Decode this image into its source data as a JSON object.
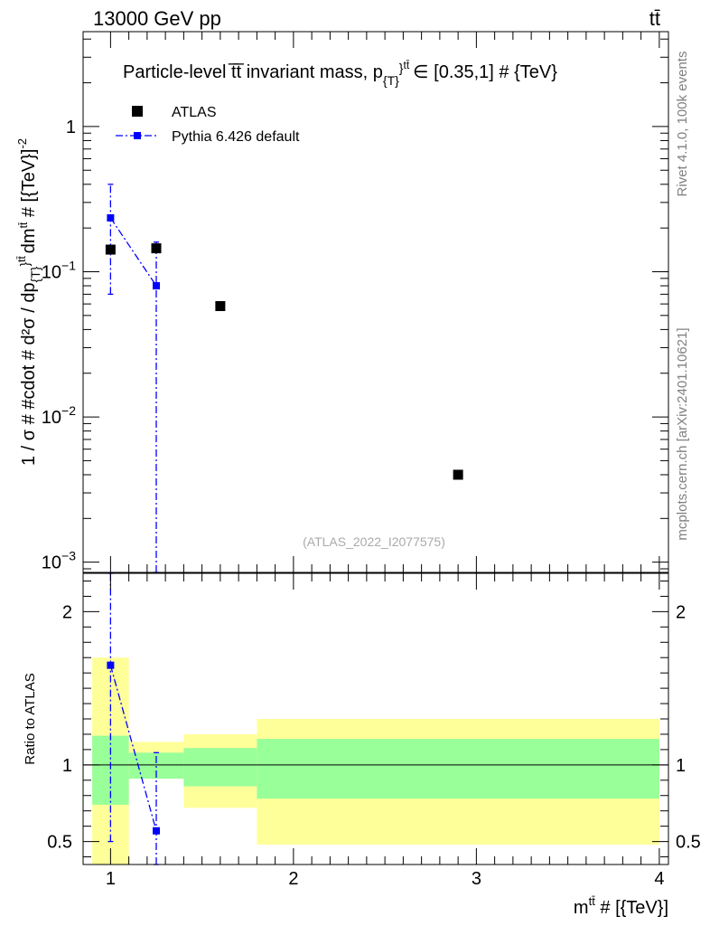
{
  "header": {
    "left": "13000 GeV pp",
    "right": "tt̄"
  },
  "side_labels": {
    "rivet": "Rivet 4.1.0,  100k events",
    "mcplots": "mcplots.cern.ch [arXiv:2401.10621]"
  },
  "chart_data": [
    {
      "type": "scatter",
      "panel": "main",
      "title": "Particle-level tt̄ invariant mass, p_{T}^{tt̄} ∈ [0.35,1] # {TeV}",
      "title_display": "Particle-level t̅t̅ invariant mass, p",
      "title_sub": "{T}",
      "title_sup": "}",
      "title_sup2": "tt̄",
      "title_tail": "∈ [0.35,1] # {TeV}",
      "ylabel": "1 / σ # #cdot # d²σ / dp_{T}^{tt̄} dm^{tt̄} # [{TeV}⁻²]",
      "ylabel_display": "1 / σ # #cdot # d²σ / dp",
      "ylabel_tail": "dm",
      "ylabel_units": " # [{TeV}]",
      "ylabel_exp": "-2",
      "yscale": "log",
      "ylim": [
        0.00085,
        4.5
      ],
      "xlim": [
        0.85,
        4.05
      ],
      "yticks": [
        {
          "value": 1,
          "label": "1"
        },
        {
          "value": 0.1,
          "label": "10",
          "exp": "−1"
        },
        {
          "value": 0.01,
          "label": "10",
          "exp": "−2"
        },
        {
          "value": 0.001,
          "label": "10",
          "exp": "−3"
        }
      ],
      "watermark": "(ATLAS_2022_I2077575)",
      "legend": {
        "placement": "top-left",
        "entries": [
          {
            "label": "ATLAS",
            "color": "#000000",
            "marker": "square"
          },
          {
            "label": "Pythia 6.426 default",
            "color": "#0000ff",
            "marker": "square",
            "line": "dash-dot"
          }
        ]
      },
      "series": [
        {
          "name": "ATLAS",
          "color": "#000000",
          "points": [
            {
              "x": 1.0,
              "y": 0.142
            },
            {
              "x": 1.25,
              "y": 0.145
            },
            {
              "x": 1.6,
              "y": 0.058
            },
            {
              "x": 2.9,
              "y": 0.004
            }
          ]
        },
        {
          "name": "Pythia 6.426 default",
          "color": "#0000ff",
          "points": [
            {
              "x": 1.0,
              "y": 0.235,
              "ylow": 0.07,
              "yhigh": 0.4
            },
            {
              "x": 1.25,
              "y": 0.08,
              "ylow": 0.00085,
              "yhigh": 0.16
            }
          ]
        }
      ]
    },
    {
      "type": "scatter",
      "panel": "ratio",
      "ylabel": "Ratio to ATLAS",
      "xlabel": "m^{tt̄} # [{TeV}]",
      "xlabel_display": "m",
      "xlabel_sup": "tt̄",
      "xlabel_tail": " # [{TeV}]",
      "ylim": [
        0.35,
        2.25
      ],
      "xlim": [
        0.85,
        4.05
      ],
      "yticks": [
        {
          "value": 0.5,
          "label": "0.5"
        },
        {
          "value": 1,
          "label": "1"
        },
        {
          "value": 2,
          "label": "2"
        }
      ],
      "xticks": [
        {
          "value": 1,
          "label": "1"
        },
        {
          "value": 2,
          "label": "2"
        },
        {
          "value": 3,
          "label": "3"
        },
        {
          "value": 4,
          "label": "4"
        }
      ],
      "reference_line": 1,
      "bands": [
        {
          "xmin": 0.9,
          "xmax": 1.1,
          "yellow": [
            0.35,
            1.7
          ],
          "green": [
            0.74,
            1.19
          ]
        },
        {
          "xmin": 1.1,
          "xmax": 1.4,
          "yellow": [
            0.91,
            1.15
          ],
          "green": [
            0.91,
            1.08
          ]
        },
        {
          "xmin": 1.4,
          "xmax": 1.8,
          "yellow": [
            0.72,
            1.2
          ],
          "green": [
            0.86,
            1.11
          ]
        },
        {
          "xmin": 1.8,
          "xmax": 4.0,
          "yellow": [
            0.48,
            1.3
          ],
          "green": [
            0.78,
            1.17
          ]
        }
      ],
      "band_colors": {
        "yellow": "#ffff99",
        "green": "#99ff99"
      },
      "series": [
        {
          "name": "Pythia 6.426 default",
          "color": "#0000ff",
          "points": [
            {
              "x": 1.0,
              "y": 1.65,
              "ylow": 0.5,
              "yhigh": 2.25
            },
            {
              "x": 1.25,
              "y": 0.57,
              "ylow": 0.35,
              "yhigh": 1.08
            }
          ]
        }
      ]
    }
  ]
}
